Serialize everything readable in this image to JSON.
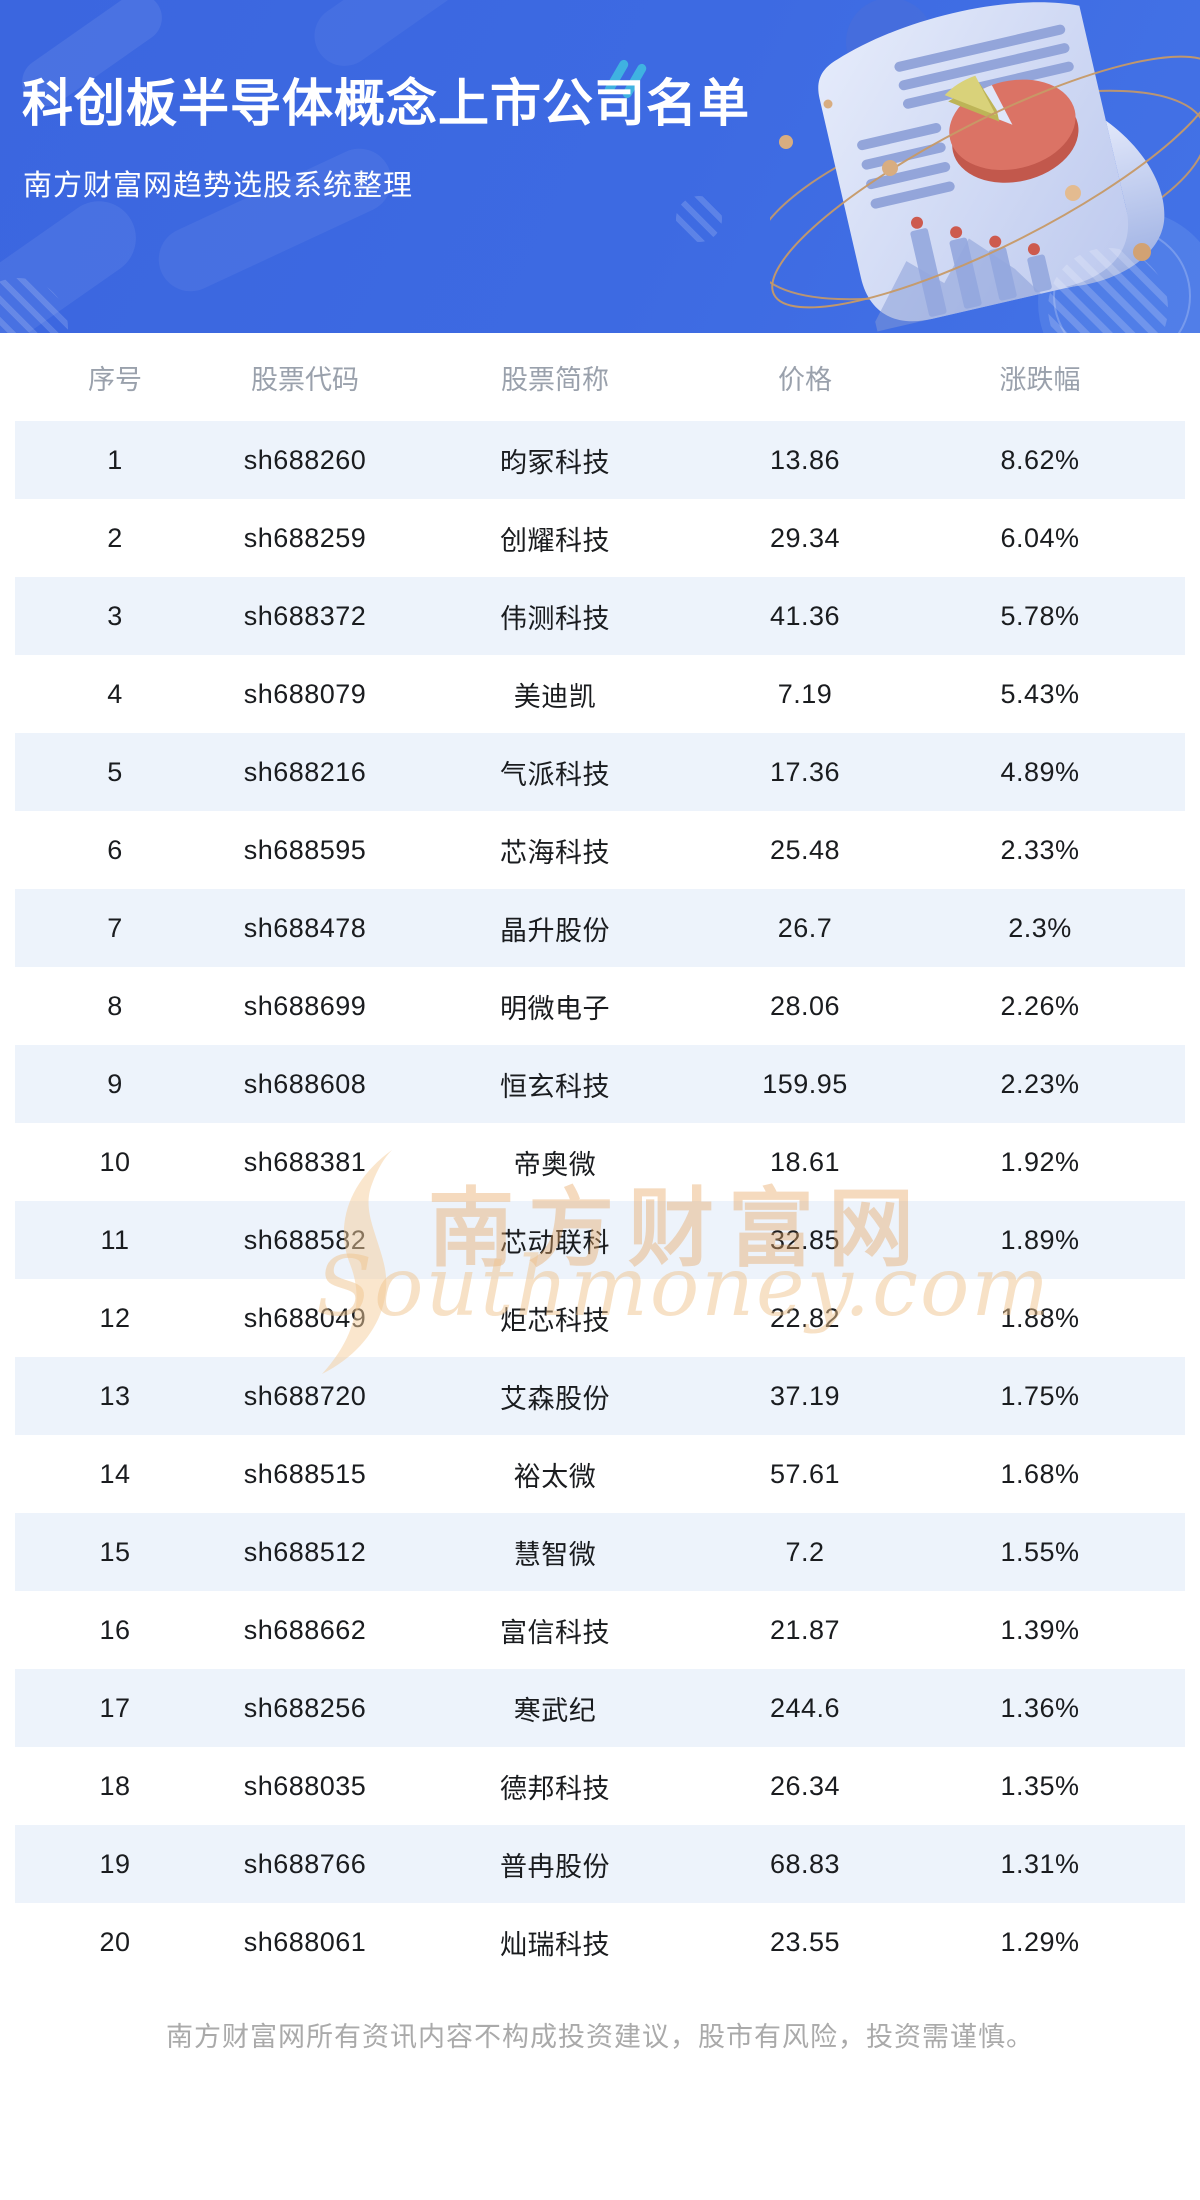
{
  "banner": {
    "title": "科创板半导体概念上市公司名单",
    "subtitle": "南方财富网趋势选股系统整理"
  },
  "table": {
    "columns": [
      "序号",
      "股票代码",
      "股票简称",
      "价格",
      "涨跌幅"
    ],
    "column_keys": [
      "index",
      "stock-code",
      "stock-name",
      "price",
      "change-percent"
    ],
    "rows": [
      [
        "1",
        "sh688260",
        "昀冢科技",
        "13.86",
        "8.62%"
      ],
      [
        "2",
        "sh688259",
        "创耀科技",
        "29.34",
        "6.04%"
      ],
      [
        "3",
        "sh688372",
        "伟测科技",
        "41.36",
        "5.78%"
      ],
      [
        "4",
        "sh688079",
        "美迪凯",
        "7.19",
        "5.43%"
      ],
      [
        "5",
        "sh688216",
        "气派科技",
        "17.36",
        "4.89%"
      ],
      [
        "6",
        "sh688595",
        "芯海科技",
        "25.48",
        "2.33%"
      ],
      [
        "7",
        "sh688478",
        "晶升股份",
        "26.7",
        "2.3%"
      ],
      [
        "8",
        "sh688699",
        "明微电子",
        "28.06",
        "2.26%"
      ],
      [
        "9",
        "sh688608",
        "恒玄科技",
        "159.95",
        "2.23%"
      ],
      [
        "10",
        "sh688381",
        "帝奥微",
        "18.61",
        "1.92%"
      ],
      [
        "11",
        "sh688582",
        "芯动联科",
        "32.85",
        "1.89%"
      ],
      [
        "12",
        "sh688049",
        "炬芯科技",
        "22.82",
        "1.88%"
      ],
      [
        "13",
        "sh688720",
        "艾森股份",
        "37.19",
        "1.75%"
      ],
      [
        "14",
        "sh688515",
        "裕太微",
        "57.61",
        "1.68%"
      ],
      [
        "15",
        "sh688512",
        "慧智微",
        "7.2",
        "1.55%"
      ],
      [
        "16",
        "sh688662",
        "富信科技",
        "21.87",
        "1.39%"
      ],
      [
        "17",
        "sh688256",
        "寒武纪",
        "244.6",
        "1.36%"
      ],
      [
        "18",
        "sh688035",
        "德邦科技",
        "26.34",
        "1.35%"
      ],
      [
        "19",
        "sh688766",
        "普冉股份",
        "68.83",
        "1.31%"
      ],
      [
        "20",
        "sh688061",
        "灿瑞科技",
        "23.55",
        "1.29%"
      ]
    ]
  },
  "watermark": {
    "cn": "南方财富网",
    "en": "Southmoney.com"
  },
  "footer": {
    "disclaimer": "南方财富网所有资讯内容不构成投资建议，股市有风险，投资需谨慎。"
  },
  "colors": {
    "banner_blue": "#3d6ae2",
    "row_alt_blue": "#edf3fb",
    "header_gray": "#9aa1ac",
    "cell_text": "#1a1c1f",
    "disclaimer_gray": "#aaaaaa",
    "watermark_orange": "#e8a864",
    "pie_red": "#db7365",
    "pie_yellow": "#d9d27a",
    "orbit_tan": "#c79a67"
  }
}
